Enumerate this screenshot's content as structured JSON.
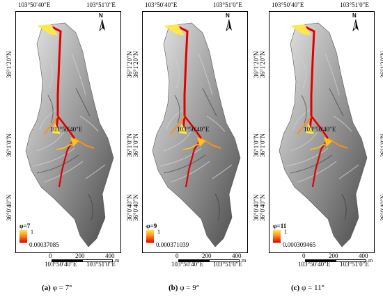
{
  "coordinates": {
    "top_left": "103°50′40″E",
    "top_right": "103°51′0″E",
    "mid": "103°50′40″E",
    "bottom_left": "103°50′40″E",
    "bottom_right": "103°51′0″E",
    "lat_left": [
      "36°1′20″N",
      "36°1′0″N",
      "36°0′40″N"
    ],
    "lat_right": [
      "36°1′20″N",
      "36°1′0″N",
      "36°0′40″N"
    ]
  },
  "north_label": "N",
  "scale_bar": {
    "labels": [
      "0",
      "200",
      "400"
    ],
    "unit": "m"
  },
  "colors": {
    "high": "#ffe64d",
    "mid": "#ff8c1a",
    "low": "#e00000"
  },
  "panels": [
    {
      "legend_title": "φ=7",
      "legend_max": "1",
      "legend_min": "0.00037085",
      "caption_letter": "(a)",
      "caption_text": " φ = 7°"
    },
    {
      "legend_title": "φ=9",
      "legend_max": "1",
      "legend_min": "0.000371039",
      "caption_letter": "(b)",
      "caption_text": " φ = 9°"
    },
    {
      "legend_title": "φ=11",
      "legend_max": "1",
      "legend_min": "0.000309465",
      "caption_letter": "(c)",
      "caption_text": " φ = 11°"
    }
  ]
}
